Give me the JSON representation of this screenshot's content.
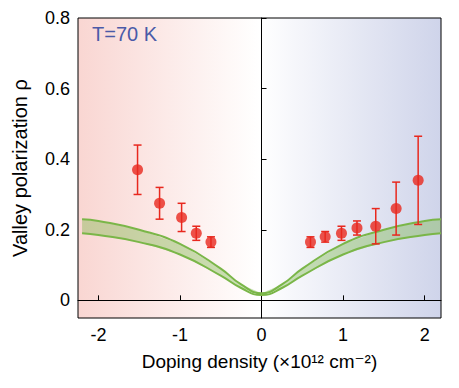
{
  "chart_data": {
    "type": "scatter",
    "annotation": "T=70 K",
    "x_label": "Doping density (×10¹² cm⁻²)",
    "y_label": "Valley polarization ρ",
    "xlim": [
      -2.25,
      2.2
    ],
    "ylim": [
      -0.05,
      0.8
    ],
    "xticks": [
      -2,
      -1,
      0,
      1,
      2
    ],
    "yticks": [
      0,
      0.2,
      0.4,
      0.6,
      0.8
    ],
    "grid": false,
    "points": {
      "x": [
        -1.52,
        -1.25,
        -0.98,
        -0.8,
        -0.62,
        0.6,
        0.78,
        0.98,
        1.17,
        1.4,
        1.65,
        1.92
      ],
      "values": [
        0.37,
        0.275,
        0.235,
        0.19,
        0.165,
        0.165,
        0.18,
        0.19,
        0.205,
        0.21,
        0.26,
        0.34
      ],
      "errors": [
        0.07,
        0.045,
        0.04,
        0.02,
        0.015,
        0.015,
        0.015,
        0.02,
        0.02,
        0.05,
        0.075,
        0.125
      ],
      "color": "#e8281e",
      "marker": "circle"
    },
    "band": {
      "x": [
        -2.2,
        -2,
        -1.5,
        -1,
        -0.5,
        -0.25,
        0,
        0.25,
        0.5,
        1,
        1.5,
        2,
        2.2
      ],
      "lower": [
        0.19,
        0.185,
        0.165,
        0.13,
        0.07,
        0.035,
        0.015,
        0.035,
        0.07,
        0.13,
        0.165,
        0.185,
        0.19
      ],
      "upper": [
        0.23,
        0.225,
        0.2,
        0.16,
        0.09,
        0.045,
        0.02,
        0.045,
        0.09,
        0.16,
        0.2,
        0.225,
        0.23
      ],
      "color": "#7ab648"
    }
  }
}
